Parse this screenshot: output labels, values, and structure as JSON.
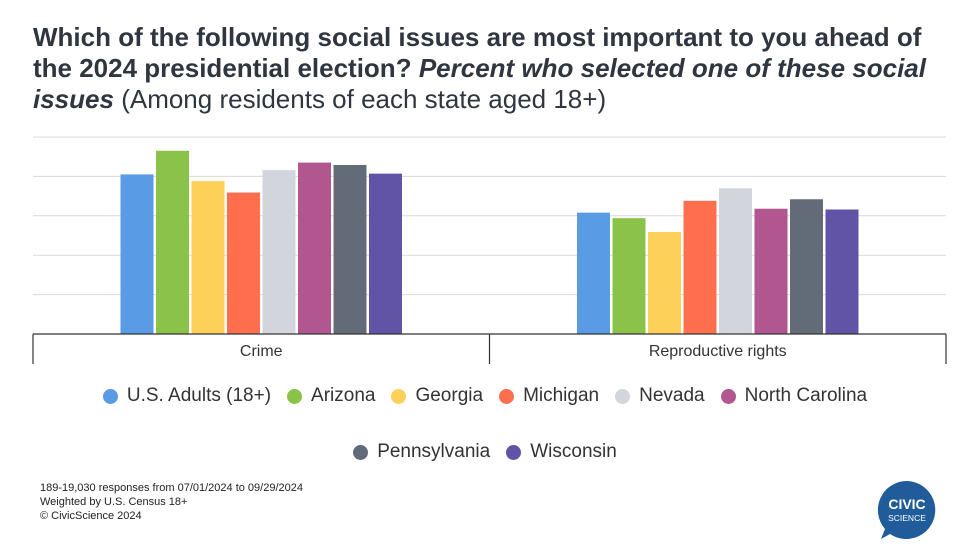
{
  "title": {
    "question": "Which of the following social issues are most important to you ahead of the 2024 presidential election?",
    "subtitle": "Percent who selected one of these social issues",
    "note": "(Among residents of each state aged 18+)"
  },
  "chart_data": {
    "type": "bar",
    "categories": [
      "Crime",
      "Reproductive rights"
    ],
    "series": [
      {
        "name": "U.S. Adults (18+)",
        "color": "#5a9be6",
        "values": [
          40.5,
          30.8
        ]
      },
      {
        "name": "Arizona",
        "color": "#8bc34a",
        "values": [
          46.5,
          29.4
        ]
      },
      {
        "name": "Georgia",
        "color": "#fdd05a",
        "values": [
          38.8,
          25.9
        ]
      },
      {
        "name": "Michigan",
        "color": "#ff6f4e",
        "values": [
          35.9,
          33.8
        ]
      },
      {
        "name": "Nevada",
        "color": "#d2d6dc",
        "values": [
          41.6,
          37.0
        ]
      },
      {
        "name": "North Carolina",
        "color": "#b2568f",
        "values": [
          43.5,
          31.8
        ]
      },
      {
        "name": "Pennsylvania",
        "color": "#646b78",
        "values": [
          42.9,
          34.2
        ]
      },
      {
        "name": "Wisconsin",
        "color": "#6153a6",
        "values": [
          40.7,
          31.6
        ]
      }
    ],
    "ylim": [
      0,
      50
    ],
    "gridlines": [
      10,
      20,
      30,
      40,
      50
    ],
    "grid": true,
    "legend_position": "bottom"
  },
  "footer": {
    "line1": "189-19,030 responses from 07/01/2024 to 09/29/2024",
    "line2": "Weighted by U.S. Census 18+",
    "line3": "© CivicScience 2024"
  },
  "logo": {
    "line1": "CIVIC",
    "line2": "SCIENCE",
    "color": "#1f5c99"
  }
}
